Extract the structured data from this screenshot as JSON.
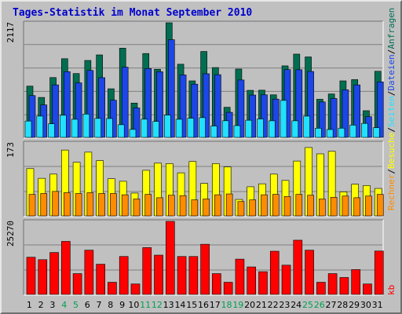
{
  "chart_data": {
    "type": "bar",
    "title": "Tages-Statistik im Monat September 2010",
    "categories": [
      "1",
      "2",
      "3",
      "4",
      "5",
      "6",
      "7",
      "8",
      "9",
      "10",
      "11",
      "12",
      "13",
      "14",
      "15",
      "16",
      "17",
      "18",
      "19",
      "20",
      "21",
      "22",
      "23",
      "24",
      "25",
      "26",
      "27",
      "28",
      "29",
      "30",
      "31"
    ],
    "weekend_days": [
      "4",
      "5",
      "11",
      "12",
      "18",
      "19",
      "25",
      "26"
    ],
    "panels": [
      {
        "id": "top",
        "ymax_label": "2117",
        "ylim": [
          0,
          2117
        ],
        "series": [
          {
            "name": "Anfragen",
            "color": "#006E50",
            "values": [
              947,
              738,
              1105,
              1453,
              1179,
              1421,
              1523,
              898,
              1648,
              634,
              1549,
              1258,
              2117,
              1351,
              1044,
              1587,
              1290,
              556,
              1262,
              869,
              872,
              786,
              1321,
              1538,
              1486,
              704,
              802,
              1044,
              1067,
              493,
              1221
            ]
          },
          {
            "name": "Dateien",
            "color": "#1C46E6",
            "values": [
              772,
              600,
              970,
              1214,
              1007,
              1236,
              1103,
              687,
              1297,
              544,
              1272,
              1212,
              1804,
              1153,
              983,
              1175,
              1158,
              463,
              1060,
              782,
              786,
              707,
              1252,
              1249,
              1218,
              655,
              718,
              879,
              969,
              382,
              1025
            ]
          },
          {
            "name": "Seiten",
            "color": "#22E1FF",
            "values": [
              302,
              393,
              251,
              409,
              334,
              430,
              350,
              348,
              234,
              147,
              336,
              294,
              412,
              334,
              354,
              364,
              210,
              307,
              217,
              317,
              340,
              306,
              683,
              306,
              392,
              169,
              145,
              170,
              227,
              258,
              178
            ]
          }
        ]
      },
      {
        "id": "middle",
        "ymax_label": "173",
        "ylim": [
          0,
          173
        ],
        "series": [
          {
            "name": "Besuche",
            "color": "#FFFF00",
            "values": [
              112,
              89,
              99,
              156,
              127,
              151,
              131,
              88,
              82,
              54,
              108,
              125,
              124,
              102,
              129,
              77,
              124,
              116,
              39,
              69,
              76,
              99,
              84,
              130,
              162,
              147,
              153,
              57,
              75,
              72,
              65
            ]
          },
          {
            "name": "Rechner",
            "color": "#FF8C00",
            "values": [
              51,
              53,
              58,
              55,
              53,
              55,
              53,
              53,
              50,
              40,
              51,
              43,
              49,
              48,
              38,
              40,
              50,
              52,
              34,
              38,
              50,
              51,
              46,
              51,
              49,
              40,
              44,
              47,
              43,
              47,
              51
            ]
          }
        ]
      },
      {
        "id": "bottom",
        "ymax_label": "25270",
        "ylim": [
          0,
          25270
        ],
        "series": [
          {
            "name": "kb",
            "color": "#FF0000",
            "values": [
              12860,
              12010,
              14500,
              18350,
              7190,
              15300,
              10440,
              4200,
              13120,
              3600,
              16190,
              13580,
              25270,
              13110,
              13110,
              17350,
              7190,
              4200,
              12200,
              9500,
              7860,
              14940,
              10110,
              18760,
              15300,
              4200,
              7190,
              5850,
              8580,
              3600,
              15000
            ]
          }
        ]
      }
    ],
    "axis_labels": [
      {
        "text": "Anfragen",
        "color": "#006E50"
      },
      {
        "text": "Dateien",
        "color": "#1C46E6"
      },
      {
        "text": "Seiten",
        "color": "#22E1FF"
      },
      {
        "text": "Besuche",
        "color": "#FFFF00"
      },
      {
        "text": "Rechner",
        "color": "#FF8C00"
      },
      {
        "text": "kb",
        "color": "#FF0000"
      }
    ],
    "separator": "/",
    "colors": {
      "title": "#0000CC",
      "weekday_label": "#000000",
      "weekend_label": "#00A050",
      "separator": "#000000",
      "panel_bg": "#C0C0C0",
      "gridline": "#808080"
    }
  }
}
